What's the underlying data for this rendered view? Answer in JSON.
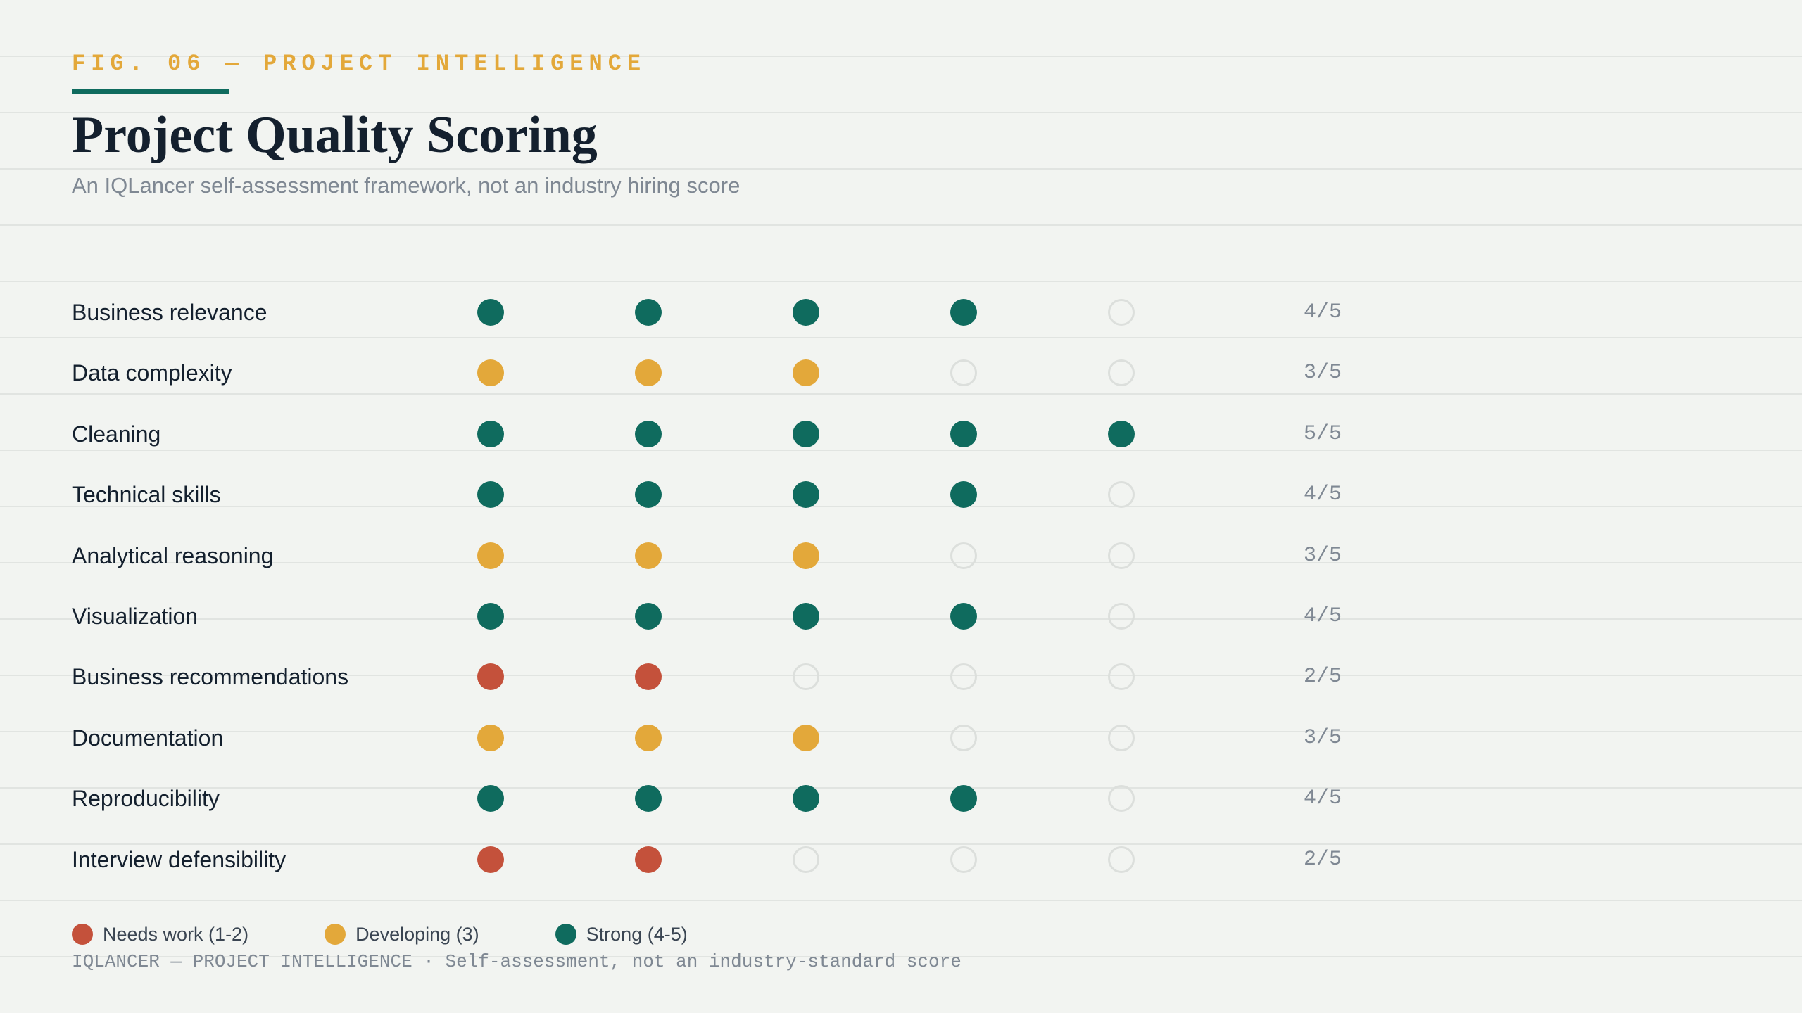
{
  "header": {
    "kicker": "FIG. 06 — PROJECT INTELLIGENCE",
    "title": "Project Quality Scoring",
    "subtitle": "An IQLancer self-assessment framework, not an industry hiring score"
  },
  "chart_data": {
    "type": "table",
    "max_score": 5,
    "rows": [
      {
        "label": "Business relevance",
        "score": 4,
        "score_text": "4/5"
      },
      {
        "label": "Data complexity",
        "score": 3,
        "score_text": "3/5"
      },
      {
        "label": "Cleaning",
        "score": 5,
        "score_text": "5/5"
      },
      {
        "label": "Technical skills",
        "score": 4,
        "score_text": "4/5"
      },
      {
        "label": "Analytical reasoning",
        "score": 3,
        "score_text": "3/5"
      },
      {
        "label": "Visualization",
        "score": 4,
        "score_text": "4/5"
      },
      {
        "label": "Business recommendations",
        "score": 2,
        "score_text": "2/5"
      },
      {
        "label": "Documentation",
        "score": 3,
        "score_text": "3/5"
      },
      {
        "label": "Reproducibility",
        "score": 4,
        "score_text": "4/5"
      },
      {
        "label": "Interview defensibility",
        "score": 2,
        "score_text": "2/5"
      }
    ],
    "legend": [
      {
        "label": "Needs work (1-2)",
        "color": "#c4513b"
      },
      {
        "label": "Developing (3)",
        "color": "#e3a83a"
      },
      {
        "label": "Strong (4-5)",
        "color": "#0f6b5e"
      }
    ]
  },
  "colors": {
    "needs_work": "#c4513b",
    "developing": "#e3a83a",
    "strong": "#0f6b5e",
    "empty": "#dcdfdc",
    "accent": "#0f6b5e"
  },
  "footer": {
    "text": "IQLANCER — PROJECT INTELLIGENCE · Self-assessment, not an industry-standard score"
  }
}
